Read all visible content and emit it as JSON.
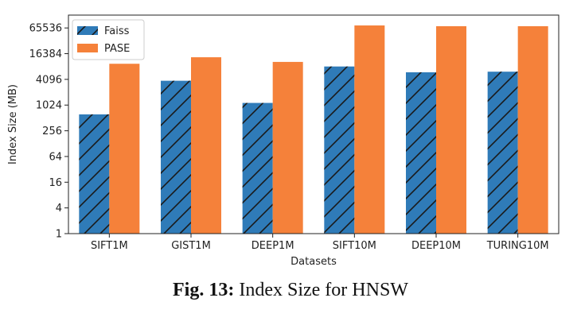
{
  "chart_data": {
    "type": "bar",
    "title": "",
    "xlabel": "Datasets",
    "ylabel": "Index Size (MB)",
    "yscale": "log2",
    "ylim": [
      1,
      131072
    ],
    "yticks": [
      1,
      4,
      16,
      64,
      256,
      1024,
      4096,
      16384,
      65536
    ],
    "categories": [
      "SIFT1M",
      "GIST1M",
      "DEEP1M",
      "SIFT10M",
      "DEEP10M",
      "TURING10M"
    ],
    "series": [
      {
        "name": "Faiss",
        "color": "#2f7bb8",
        "hatch": "diagonal",
        "values": [
          620,
          3800,
          1150,
          8200,
          6000,
          6200
        ]
      },
      {
        "name": "PASE",
        "color": "#f5813a",
        "values": [
          9500,
          13500,
          10500,
          75000,
          72000,
          72000
        ]
      }
    ],
    "legend_position": "top-left",
    "grid": false
  },
  "caption": {
    "label": "Fig. 13:",
    "text": "Index Size for HNSW"
  }
}
